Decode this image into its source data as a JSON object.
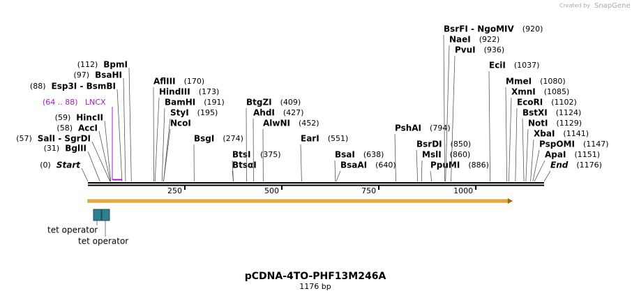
{
  "brand_note": "Created by",
  "brand": "SnapGene",
  "enzymes": [
    {
      "name": "Start",
      "pos": "(0)"
    },
    {
      "name": "BglII",
      "pos": "(31)"
    },
    {
      "name": "SalI - SgrDI",
      "pos": "(57)"
    },
    {
      "name": "AccI",
      "pos": "(58)"
    },
    {
      "name": "HincII",
      "pos": "(59)"
    },
    {
      "name": "Esp3I - BsmBI",
      "pos": "(88)"
    },
    {
      "name": "BsaHI",
      "pos": "(97)"
    },
    {
      "name": "BpmI",
      "pos": "(112)"
    },
    {
      "name": "AflIII",
      "pos": "(170)"
    },
    {
      "name": "HindIII",
      "pos": "(173)"
    },
    {
      "name": "BamHI",
      "pos": "(191)"
    },
    {
      "name": "StyI",
      "pos": "(195)"
    },
    {
      "name": "NcoI"
    },
    {
      "name": "BsgI",
      "pos": "(274)"
    },
    {
      "name": "BtsI",
      "pos": "(375)"
    },
    {
      "name": "BtsαI"
    },
    {
      "name": "BtgZI",
      "pos": "(409)"
    },
    {
      "name": "AhdI",
      "pos": "(427)"
    },
    {
      "name": "AlwNI",
      "pos": "(452)"
    },
    {
      "name": "EarI",
      "pos": "(551)"
    },
    {
      "name": "BsaI",
      "pos": "(638)"
    },
    {
      "name": "BsaAI",
      "pos": "(640)"
    },
    {
      "name": "PshAI",
      "pos": "(794)"
    },
    {
      "name": "BsrDI",
      "pos": "(850)"
    },
    {
      "name": "MslI",
      "pos": "(860)"
    },
    {
      "name": "PpuMI",
      "pos": "(886)"
    },
    {
      "name": "BsrFI - NgoMIV",
      "pos": "(920)"
    },
    {
      "name": "NaeI",
      "pos": "(922)"
    },
    {
      "name": "PvuI",
      "pos": "(936)"
    },
    {
      "name": "EciI",
      "pos": "(1037)"
    },
    {
      "name": "MmeI",
      "pos": "(1080)"
    },
    {
      "name": "XmnI",
      "pos": "(1085)"
    },
    {
      "name": "EcoRI",
      "pos": "(1102)"
    },
    {
      "name": "BstXI",
      "pos": "(1124)"
    },
    {
      "name": "NotI",
      "pos": "(1129)"
    },
    {
      "name": "XbaI",
      "pos": "(1141)"
    },
    {
      "name": "PspOMI",
      "pos": "(1147)"
    },
    {
      "name": "ApaI",
      "pos": "(1151)"
    },
    {
      "name": "End",
      "pos": "(1176)"
    }
  ],
  "feature": {
    "name": "LNCX",
    "range": "(64 .. 88)"
  },
  "scale_ticks": [
    250,
    500,
    750,
    1000
  ],
  "annotations": [
    "tet operator",
    "tet operator"
  ],
  "title": "pCDNA-4TO-PHF13M246A",
  "length": "1176 bp"
}
